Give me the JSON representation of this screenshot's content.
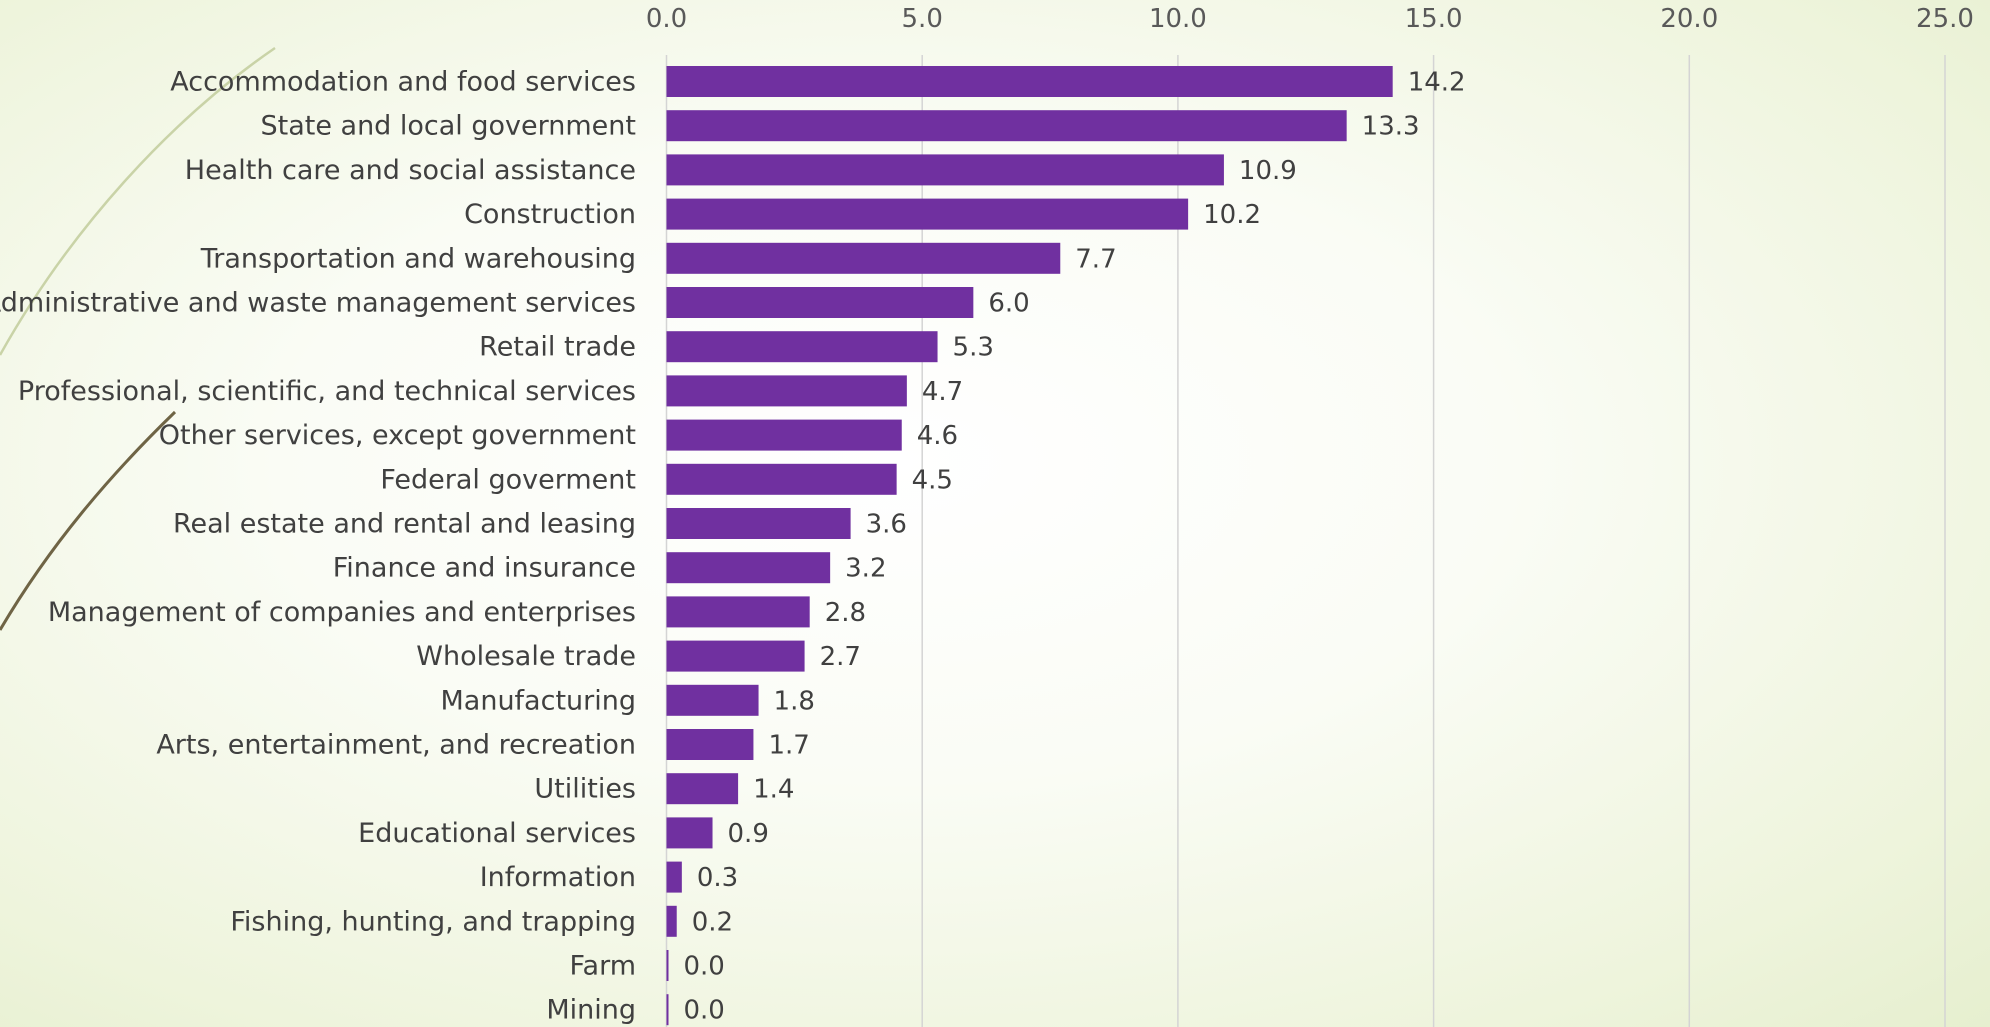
{
  "chart_data": {
    "type": "bar",
    "orientation": "horizontal",
    "title": "",
    "xlabel": "",
    "ylabel": "",
    "xlim": [
      0,
      25
    ],
    "x_ticks": [
      "0.0",
      "5.0",
      "10.0",
      "15.0",
      "20.0",
      "25.0"
    ],
    "x_axis_position": "top",
    "grid": true,
    "legend": "none",
    "bar_color": "#7030a0",
    "categories": [
      "Accommodation and food services",
      "State and local government",
      "Health care and social assistance",
      "Construction",
      "Transportation and warehousing",
      "Administrative and waste management services",
      "Retail trade",
      "Professional, scientific, and technical services",
      "Other services, except government",
      "Federal goverment",
      "Real estate and rental and leasing",
      "Finance and insurance",
      "Management of companies and enterprises",
      "Wholesale trade",
      "Manufacturing",
      "Arts, entertainment, and recreation",
      "Utilities",
      "Educational services",
      "Information",
      "Fishing, hunting, and trapping",
      "Farm",
      "Mining"
    ],
    "values": [
      14.2,
      13.3,
      10.9,
      10.2,
      7.7,
      6.0,
      5.3,
      4.7,
      4.6,
      4.5,
      3.6,
      3.2,
      2.8,
      2.7,
      1.8,
      1.7,
      1.4,
      0.9,
      0.3,
      0.2,
      0.0,
      0.0
    ],
    "value_labels": [
      "14.2",
      "13.3",
      "10.9",
      "10.2",
      "7.7",
      "6.0",
      "5.3",
      "4.7",
      "4.6",
      "4.5",
      "3.6",
      "3.2",
      "2.8",
      "2.7",
      "1.8",
      "1.7",
      "1.4",
      "0.9",
      "0.3",
      "0.2",
      "0.0",
      "0.0"
    ]
  }
}
